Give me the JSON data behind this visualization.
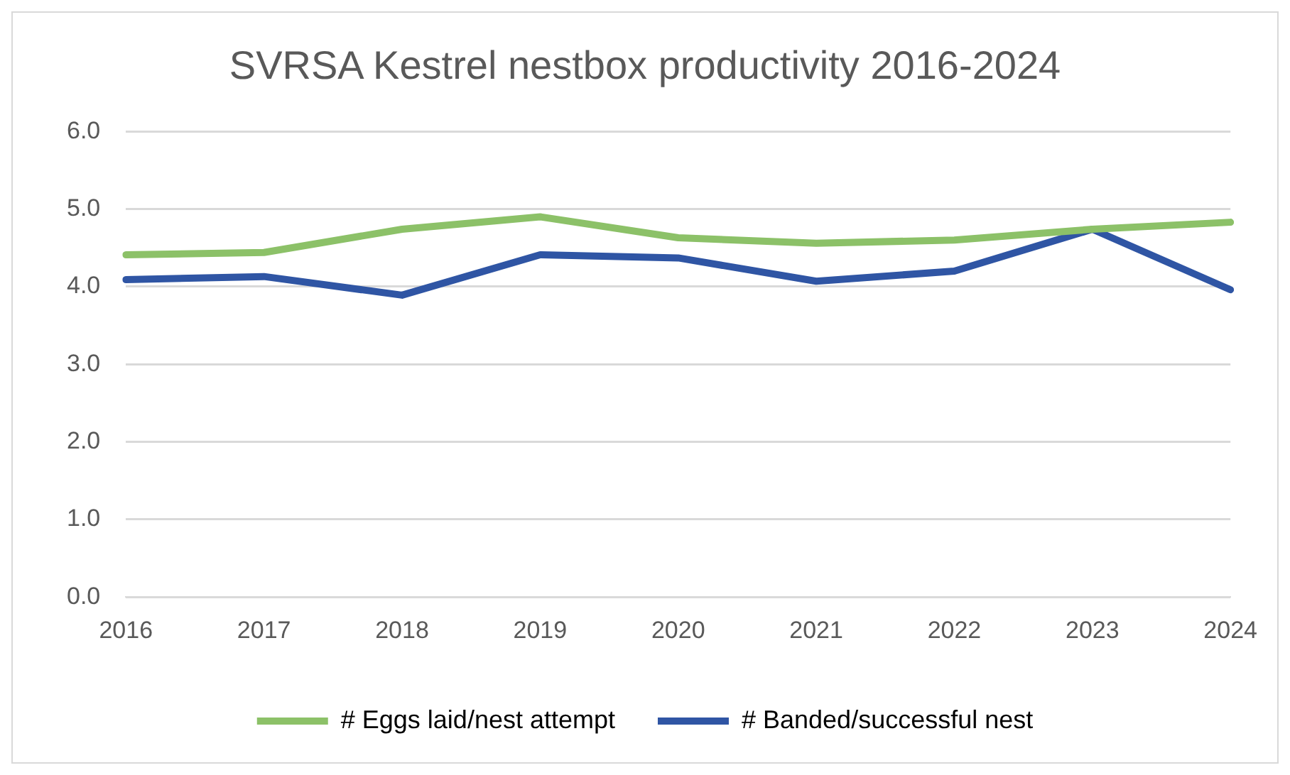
{
  "chart_data": {
    "type": "line",
    "title": "SVRSA Kestrel nestbox productivity 2016-2024",
    "categories": [
      "2016",
      "2017",
      "2018",
      "2019",
      "2020",
      "2021",
      "2022",
      "2023",
      "2024"
    ],
    "series": [
      {
        "name": "# Eggs laid/nest attempt",
        "color": "#8cc168",
        "values": [
          4.41,
          4.44,
          4.74,
          4.9,
          4.63,
          4.56,
          4.6,
          4.74,
          4.83
        ]
      },
      {
        "name": "# Banded/successful nest",
        "color": "#2f55a4",
        "values": [
          4.09,
          4.13,
          3.89,
          4.41,
          4.37,
          4.07,
          4.2,
          4.74,
          3.96
        ]
      }
    ],
    "ylim": [
      0,
      6
    ],
    "yticks": [
      {
        "value": 0,
        "label": "0.0"
      },
      {
        "value": 1,
        "label": "1.0"
      },
      {
        "value": 2,
        "label": "2.0"
      },
      {
        "value": 3,
        "label": "3.0"
      },
      {
        "value": 4,
        "label": "4.0"
      },
      {
        "value": 5,
        "label": "5.0"
      },
      {
        "value": 6,
        "label": "6.0"
      }
    ],
    "grid": "y",
    "legend": "bottom",
    "marker": "none",
    "line_style": "solid"
  }
}
